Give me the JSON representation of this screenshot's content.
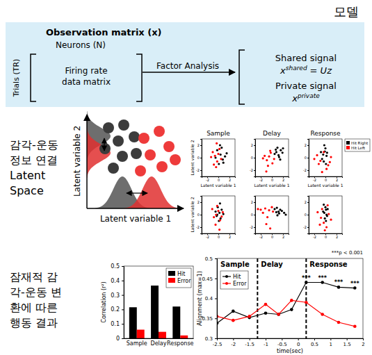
{
  "header": {
    "title": "모델"
  },
  "model": {
    "box_title": "Observation matrix (x)",
    "columns_label": "Neurons (N)",
    "rows_label": "Trials (TR)",
    "matrix_label": [
      "Firing rate",
      "data matrix"
    ],
    "arrow_label": "Factor Analysis",
    "outputs": [
      {
        "label": "Shared signal",
        "symbol": "x",
        "superscript": "shared",
        "equation": "= Uz"
      },
      {
        "label": "Private signal",
        "symbol": "x",
        "superscript": "private"
      }
    ]
  },
  "sections": [
    {
      "label": [
        "감각-운동",
        "정보 연결",
        "Latent",
        "Space"
      ]
    },
    {
      "label": [
        "잠재적 감",
        "각-운동 변",
        "환에 따른",
        "행동 결과"
      ]
    }
  ],
  "schematic": {
    "x_label": "Latent variable 1",
    "y_label": "Latent variable 2"
  },
  "chart_data": [
    {
      "type": "scatter",
      "xlim": [
        -3,
        3
      ],
      "ylim": [
        -3,
        3
      ],
      "xticks": [
        -2,
        0,
        2
      ],
      "yticks": [
        -2,
        0,
        2
      ],
      "legend": "upper right",
      "panels": [
        {
          "title": "Sample",
          "x_label": "Latent variable 1",
          "y_label": "Latent variable 2"
        },
        {
          "title": "Delay",
          "x_label": "Latent variable 1"
        },
        {
          "title": "Response",
          "x_label": "Latent variable 1"
        },
        {
          "y_label": "Latent variable 2"
        },
        {},
        {}
      ],
      "series": [
        {
          "name": "Hit Right",
          "color": "#000000",
          "panels": [
            {
              "x": [
                0.4,
                0.8,
                -0.2,
                1.2,
                0.1,
                0.6,
                -0.5,
                0.9,
                0.3,
                1.5
              ],
              "y": [
                0.5,
                -0.3,
                1.2,
                0.2,
                -1.0,
                1.6,
                0.0,
                -0.8,
                2.0,
                0.7
              ]
            },
            {
              "x": [
                0.8,
                1.2,
                1.6,
                0.5,
                1.0,
                1.9,
                1.3,
                0.7,
                2.0,
                1.5
              ],
              "y": [
                0.9,
                0.4,
                1.2,
                0.6,
                1.6,
                0.8,
                0.1,
                1.3,
                1.5,
                -0.3
              ]
            },
            {
              "x": [
                -0.4,
                -0.1,
                0.2,
                -0.6,
                0.0,
                0.3,
                -0.3,
                -0.8,
                0.1,
                -0.2
              ],
              "y": [
                0.5,
                1.0,
                0.3,
                -0.2,
                1.5,
                0.8,
                -0.6,
                0.9,
                -1.0,
                2.0
              ]
            },
            {
              "x": [
                0.2,
                -0.3,
                0.6,
                -0.1,
                0.4,
                0.9,
                -0.5,
                0.1,
                0.3,
                -0.2
              ],
              "y": [
                0.3,
                -0.2,
                0.8,
                1.2,
                -0.6,
                0.1,
                0.5,
                -1.0,
                1.8,
                0.0
              ]
            },
            {
              "x": [
                0.8,
                1.3,
                1.8,
                0.5,
                1.0,
                2.2,
                1.5,
                0.9,
                2.5,
                1.2
              ],
              "y": [
                0.4,
                0.2,
                0.6,
                0.9,
                -0.1,
                0.3,
                0.8,
                1.1,
                0.0,
                0.5
              ]
            },
            {
              "x": [
                -0.2,
                0.1,
                0.3,
                -0.4,
                0.0,
                0.2,
                -0.1,
                0.4,
                -0.3,
                0.1
              ],
              "y": [
                0.3,
                0.8,
                -0.2,
                0.5,
                1.2,
                0.0,
                -0.6,
                0.9,
                1.6,
                -1.0
              ]
            }
          ]
        },
        {
          "name": "Hit Left",
          "color": "#ff0000",
          "panels": [
            {
              "x": [
                -0.6,
                -0.2,
                -1.0,
                0.2,
                -0.4,
                -1.3,
                0.5,
                -0.8,
                0.0,
                -0.3
              ],
              "y": [
                0.3,
                -0.6,
                0.9,
                1.4,
                -1.5,
                0.1,
                -0.2,
                -1.1,
                0.6,
                2.3
              ]
            },
            {
              "x": [
                -0.5,
                -0.9,
                -0.2,
                -1.3,
                0.1,
                -0.7,
                -1.6,
                -0.3,
                0.4,
                -1.0
              ],
              "y": [
                0.2,
                -0.4,
                0.8,
                0.3,
                -0.9,
                -1.3,
                -0.1,
                1.1,
                -0.2,
                -2.2
              ]
            },
            {
              "x": [
                -0.9,
                0.5,
                -1.5,
                0.2,
                -0.6,
                1.0,
                -1.2,
                -0.3,
                0.8,
                -2.0
              ],
              "y": [
                -0.5,
                -1.2,
                0.4,
                -1.8,
                -2.3,
                0.1,
                -1.0,
                0.9,
                -0.7,
                -0.2
              ]
            },
            {
              "x": [
                -0.4,
                0.0,
                -0.8,
                0.3,
                -0.2,
                0.6,
                -1.1,
                -0.5,
                0.2,
                0.8
              ],
              "y": [
                0.0,
                0.6,
                -0.4,
                -0.9,
                1.4,
                -0.3,
                0.9,
                -1.6,
                -2.4,
                0.4
              ]
            },
            {
              "x": [
                -2.0,
                -1.2,
                -0.5,
                0.2,
                -1.6,
                -0.8,
                0.0,
                -2.5,
                -1.0,
                -0.3
              ],
              "y": [
                0.8,
                1.0,
                0.7,
                0.5,
                0.3,
                -0.4,
                1.2,
                0.9,
                -1.5,
                -2.2
              ]
            },
            {
              "x": [
                -0.8,
                -0.3,
                0.6,
                -1.4,
                0.2,
                -0.6,
                1.0,
                -0.1,
                -1.0,
                0.4
              ],
              "y": [
                -0.5,
                -1.3,
                0.1,
                0.4,
                -2.0,
                0.9,
                -0.8,
                -2.5,
                -1.6,
                1.5
              ]
            }
          ]
        }
      ]
    },
    {
      "type": "bar",
      "categories": [
        "Sample",
        "Delay",
        "Response"
      ],
      "series": [
        {
          "name": "Hit",
          "color": "#000000",
          "values": [
            0.215,
            0.365,
            0.22
          ]
        },
        {
          "name": "Error",
          "color": "#ff0000",
          "values": [
            0.06,
            0.045,
            0.02
          ]
        }
      ],
      "y_label": "Correlation (r²)",
      "ylim": [
        0,
        0.5
      ],
      "yticks": [
        0,
        0.1,
        0.2,
        0.3,
        0.4,
        0.5
      ],
      "legend": "upper right"
    },
    {
      "type": "line",
      "x": [
        -2.5,
        -2.0,
        -1.5,
        -1.0,
        -0.6,
        -0.2,
        0.25,
        0.75,
        1.25,
        1.75
      ],
      "series": [
        {
          "name": "Hit",
          "color": "#000000",
          "marker": "circle",
          "values": [
            0.338,
            0.368,
            0.352,
            0.363,
            0.36,
            0.372,
            0.44,
            0.44,
            0.428,
            0.426
          ]
        },
        {
          "name": "Error",
          "color": "#ff0000",
          "marker": "circle",
          "values": [
            0.355,
            0.345,
            0.355,
            0.385,
            0.36,
            0.395,
            0.39,
            0.36,
            0.34,
            0.33
          ]
        }
      ],
      "x_label": "time(sec)",
      "y_label": "Alignment (max=1)",
      "xlim": [
        -2.5,
        2
      ],
      "xticks": [
        -2.5,
        -2,
        -1.5,
        -1,
        -0.5,
        0,
        0.5,
        1,
        1.5,
        2
      ],
      "ylim": [
        0.3,
        0.5
      ],
      "yticks": [
        0.3,
        0.35,
        0.4,
        0.45,
        0.5
      ],
      "legend": "upper left",
      "phases": [
        {
          "label": "Sample",
          "start": -2.5
        },
        {
          "label": "Delay",
          "start": -1.25
        },
        {
          "label": "Response",
          "start": 0.25
        }
      ],
      "annotations": [
        {
          "x": 0.25,
          "text": "***"
        },
        {
          "x": 0.75,
          "text": "***"
        },
        {
          "x": 1.25,
          "text": "***"
        },
        {
          "x": 1.75,
          "text": "***"
        }
      ],
      "significance_note": "***p < 0.001"
    }
  ]
}
